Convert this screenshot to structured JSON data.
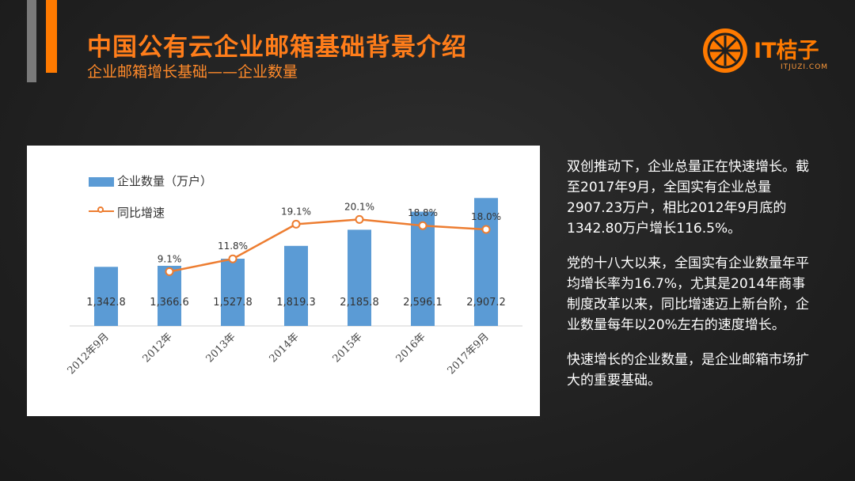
{
  "header": {
    "title": "中国公有云企业邮箱基础背景介绍",
    "subtitle": "企业邮箱增长基础——企业数量"
  },
  "logo": {
    "icon": "orange-slice-icon",
    "name": "IT桔子",
    "sub": "ITJUZI.COM"
  },
  "colors": {
    "accent": "#ff7a00",
    "bar": "#5b9bd5",
    "line": "#ed7d31"
  },
  "chart_data": {
    "type": "bar",
    "categories": [
      "2012年9月",
      "2012年",
      "2013年",
      "2014年",
      "2015年",
      "2016年",
      "2017年9月"
    ],
    "series": [
      {
        "name": "企业数量（万户）",
        "type": "bar",
        "values": [
          1342.8,
          1366.6,
          1527.8,
          1819.3,
          2185.8,
          2596.1,
          2907.2
        ],
        "labels": [
          "1,342.8",
          "1,366.6",
          "1,527.8",
          "1,819.3",
          "2,185.8",
          "2,596.1",
          "2,907.2"
        ]
      },
      {
        "name": "同比增速",
        "type": "line",
        "values": [
          null,
          9.1,
          11.8,
          19.1,
          20.1,
          18.8,
          18.0
        ],
        "labels": [
          "",
          "9.1%",
          "11.8%",
          "19.1%",
          "20.1%",
          "18.8%",
          "18.0%"
        ]
      }
    ],
    "legend": "top-left"
  },
  "text": {
    "p1": "双创推动下，企业总量正在快速增长。截至2017年9月，全国实有企业总量2907.23万户，相比2012年9月底的1342.80万户增长116.5%。",
    "p2": "党的十八大以来，全国实有企业数量年平均增长率为16.7%，尤其是2014年商事制度改革以来，同比增速迈上新台阶，企业数量每年以20%左右的速度增长。",
    "p3": "快速增长的企业数量，是企业邮箱市场扩大的重要基础。"
  }
}
